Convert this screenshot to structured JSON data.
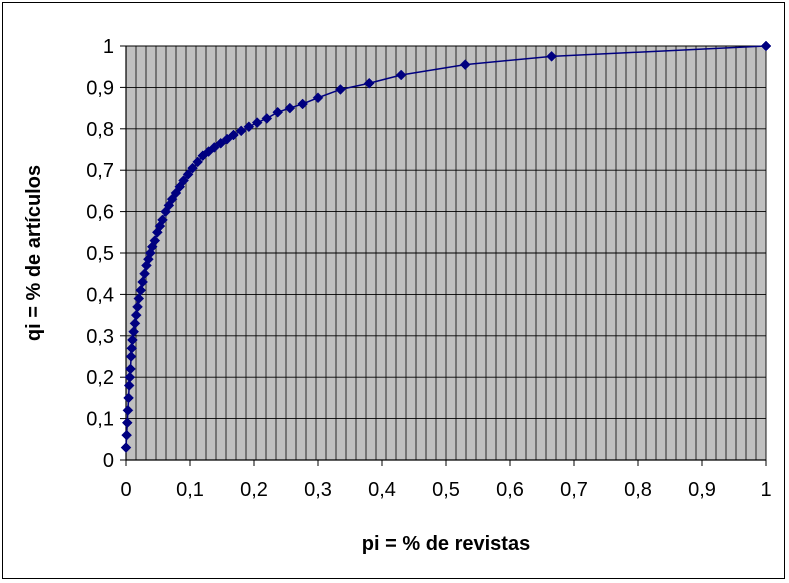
{
  "chart_data": {
    "type": "scatter",
    "title": "",
    "xlabel": "pi = % de revistas",
    "ylabel": "qi = % de artículos",
    "xlim": [
      0,
      1
    ],
    "ylim": [
      0,
      1
    ],
    "x_ticks": [
      "0",
      "0,1",
      "0,2",
      "0,3",
      "0,4",
      "0,5",
      "0,6",
      "0,7",
      "0,8",
      "0,9",
      "1"
    ],
    "y_ticks": [
      "0",
      "0,1",
      "0,2",
      "0,3",
      "0,4",
      "0,5",
      "0,6",
      "0,7",
      "0,8",
      "0,9",
      "1"
    ],
    "grid": true,
    "legend": "none",
    "colors": {
      "series": "#000080",
      "plot_background": "#c0c0c0",
      "grid": "#000000"
    },
    "series": [
      {
        "marker": "diamond",
        "line": true,
        "x": [
          0,
          0.001,
          0.002,
          0.003,
          0.004,
          0.005,
          0.006,
          0.007,
          0.008,
          0.009,
          0.01,
          0.012,
          0.014,
          0.016,
          0.018,
          0.02,
          0.023,
          0.026,
          0.029,
          0.032,
          0.035,
          0.038,
          0.041,
          0.045,
          0.049,
          0.053,
          0.057,
          0.062,
          0.067,
          0.072,
          0.078,
          0.084,
          0.09,
          0.097,
          0.104,
          0.112,
          0.12,
          0.129,
          0.138,
          0.148,
          0.158,
          0.168,
          0.18,
          0.192,
          0.205,
          0.22,
          0.237,
          0.256,
          0.276,
          0.3,
          0.335,
          0.38,
          0.43,
          0.53,
          0.665,
          1.0
        ],
        "y": [
          0.03,
          0.06,
          0.09,
          0.12,
          0.15,
          0.18,
          0.2,
          0.22,
          0.25,
          0.27,
          0.29,
          0.31,
          0.33,
          0.35,
          0.37,
          0.39,
          0.41,
          0.43,
          0.45,
          0.47,
          0.485,
          0.5,
          0.515,
          0.53,
          0.55,
          0.565,
          0.58,
          0.6,
          0.615,
          0.63,
          0.645,
          0.66,
          0.675,
          0.69,
          0.705,
          0.72,
          0.735,
          0.745,
          0.755,
          0.765,
          0.775,
          0.785,
          0.795,
          0.805,
          0.815,
          0.825,
          0.84,
          0.85,
          0.86,
          0.875,
          0.895,
          0.91,
          0.93,
          0.955,
          0.975,
          1.0
        ]
      }
    ]
  }
}
